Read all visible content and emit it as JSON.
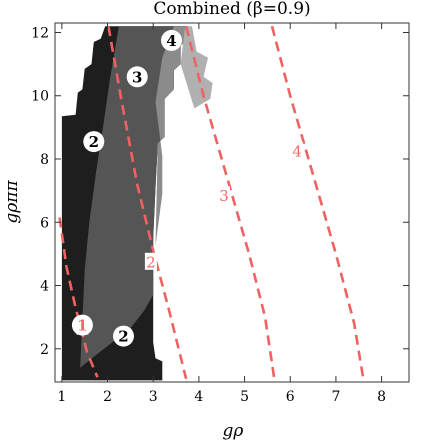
{
  "chart_data": {
    "type": "contour",
    "title": "Combined (β=0.9)",
    "xlabel": "gρ",
    "ylabel": "gρππ",
    "xlim": [
      0.85,
      8.6
    ],
    "ylim": [
      0.95,
      12.3
    ],
    "grid": false,
    "x_ticks": [
      1,
      2,
      3,
      4,
      5,
      6,
      7,
      8
    ],
    "y_ticks": [
      2,
      4,
      6,
      8,
      10,
      12
    ],
    "regions": [
      {
        "level": "2",
        "color": "#1e1e1e",
        "boundary": [
          [
            1.0,
            1.0
          ],
          [
            1.0,
            9.35
          ],
          [
            1.3,
            9.4
          ],
          [
            1.35,
            10.1
          ],
          [
            1.45,
            10.2
          ],
          [
            1.5,
            10.85
          ],
          [
            1.65,
            11.0
          ],
          [
            1.7,
            11.7
          ],
          [
            1.85,
            11.8
          ],
          [
            1.95,
            12.2
          ],
          [
            3.75,
            12.2
          ],
          [
            3.75,
            11.7
          ],
          [
            3.6,
            11.6
          ],
          [
            3.6,
            11.0
          ],
          [
            3.45,
            10.8
          ],
          [
            3.45,
            10.2
          ],
          [
            3.25,
            9.9
          ],
          [
            3.25,
            8.7
          ],
          [
            3.1,
            8.5
          ],
          [
            3.05,
            7.1
          ],
          [
            3.0,
            5.5
          ],
          [
            3.0,
            4.2
          ],
          [
            3.0,
            3.2
          ],
          [
            3.0,
            2.2
          ],
          [
            3.05,
            1.7
          ],
          [
            3.2,
            1.6
          ],
          [
            3.2,
            1.0
          ]
        ]
      },
      {
        "level": "3",
        "color": "#555555",
        "boundary": [
          [
            1.4,
            1.4
          ],
          [
            1.45,
            2.9
          ],
          [
            1.5,
            4.5
          ],
          [
            1.6,
            6.0
          ],
          [
            1.75,
            7.6
          ],
          [
            1.9,
            9.0
          ],
          [
            2.05,
            10.5
          ],
          [
            2.25,
            12.2
          ],
          [
            3.75,
            12.2
          ],
          [
            3.75,
            11.7
          ],
          [
            3.6,
            11.6
          ],
          [
            3.6,
            11.0
          ],
          [
            3.45,
            10.8
          ],
          [
            3.45,
            10.2
          ],
          [
            3.25,
            9.9
          ],
          [
            3.25,
            8.7
          ],
          [
            3.1,
            8.5
          ],
          [
            3.05,
            7.1
          ],
          [
            3.0,
            5.5
          ],
          [
            3.0,
            3.7
          ],
          [
            2.8,
            3.2
          ],
          [
            2.5,
            2.65
          ],
          [
            2.1,
            2.2
          ],
          [
            1.7,
            1.75
          ]
        ]
      },
      {
        "level": "4",
        "color": "#8b8b8b",
        "boundary": [
          [
            3.05,
            5.25
          ],
          [
            3.2,
            6.9
          ],
          [
            3.2,
            8.1
          ],
          [
            3.05,
            9.8
          ],
          [
            3.2,
            11.2
          ],
          [
            3.45,
            12.2
          ],
          [
            3.75,
            12.2
          ],
          [
            3.75,
            11.7
          ],
          [
            3.6,
            11.6
          ],
          [
            3.6,
            11.0
          ],
          [
            3.45,
            10.8
          ],
          [
            3.45,
            10.2
          ],
          [
            3.25,
            9.9
          ],
          [
            3.25,
            8.7
          ],
          [
            3.1,
            8.5
          ]
        ]
      },
      {
        "level": "5",
        "color": "#b0b0b0",
        "boundary": [
          [
            3.7,
            12.2
          ],
          [
            3.85,
            12.2
          ],
          [
            3.95,
            11.4
          ],
          [
            4.2,
            11.2
          ],
          [
            4.1,
            10.6
          ],
          [
            4.3,
            10.4
          ],
          [
            4.25,
            9.9
          ],
          [
            3.9,
            9.6
          ],
          [
            3.75,
            10.3
          ],
          [
            3.6,
            11.0
          ]
        ]
      }
    ],
    "curves": [
      {
        "name": "1",
        "points": [
          [
            0.95,
            6.15
          ],
          [
            1.1,
            4.6
          ],
          [
            1.3,
            3.3
          ],
          [
            1.55,
            1.9
          ],
          [
            1.78,
            1.1
          ]
        ]
      },
      {
        "name": "2",
        "points": [
          [
            2.02,
            12.2
          ],
          [
            2.3,
            9.9
          ],
          [
            2.65,
            7.2
          ],
          [
            3.0,
            5.1
          ],
          [
            3.35,
            3.2
          ],
          [
            3.72,
            1.05
          ]
        ]
      },
      {
        "name": "3",
        "points": [
          [
            3.72,
            12.2
          ],
          [
            4.1,
            10.0
          ],
          [
            4.6,
            7.5
          ],
          [
            5.1,
            5.0
          ],
          [
            5.45,
            3.0
          ],
          [
            5.65,
            1.05
          ]
        ]
      },
      {
        "name": "4",
        "points": [
          [
            5.6,
            12.2
          ],
          [
            6.0,
            10.0
          ],
          [
            6.5,
            7.5
          ],
          [
            7.0,
            5.0
          ],
          [
            7.4,
            2.8
          ],
          [
            7.6,
            1.05
          ]
        ]
      }
    ],
    "curve_labels": [
      {
        "text": "1",
        "x": 1.45,
        "y": 2.7
      },
      {
        "text": "2",
        "x": 2.95,
        "y": 4.75
      },
      {
        "text": "3",
        "x": 4.55,
        "y": 6.85
      },
      {
        "text": "4",
        "x": 6.15,
        "y": 8.25
      }
    ],
    "circle_labels": [
      {
        "text": "2",
        "x": 1.7,
        "y": 8.55
      },
      {
        "text": "3",
        "x": 2.65,
        "y": 10.6
      },
      {
        "text": "4",
        "x": 3.4,
        "y": 11.75
      },
      {
        "text": "1",
        "x": 1.45,
        "y": 2.75
      },
      {
        "text": "2",
        "x": 2.35,
        "y": 2.4
      }
    ]
  }
}
